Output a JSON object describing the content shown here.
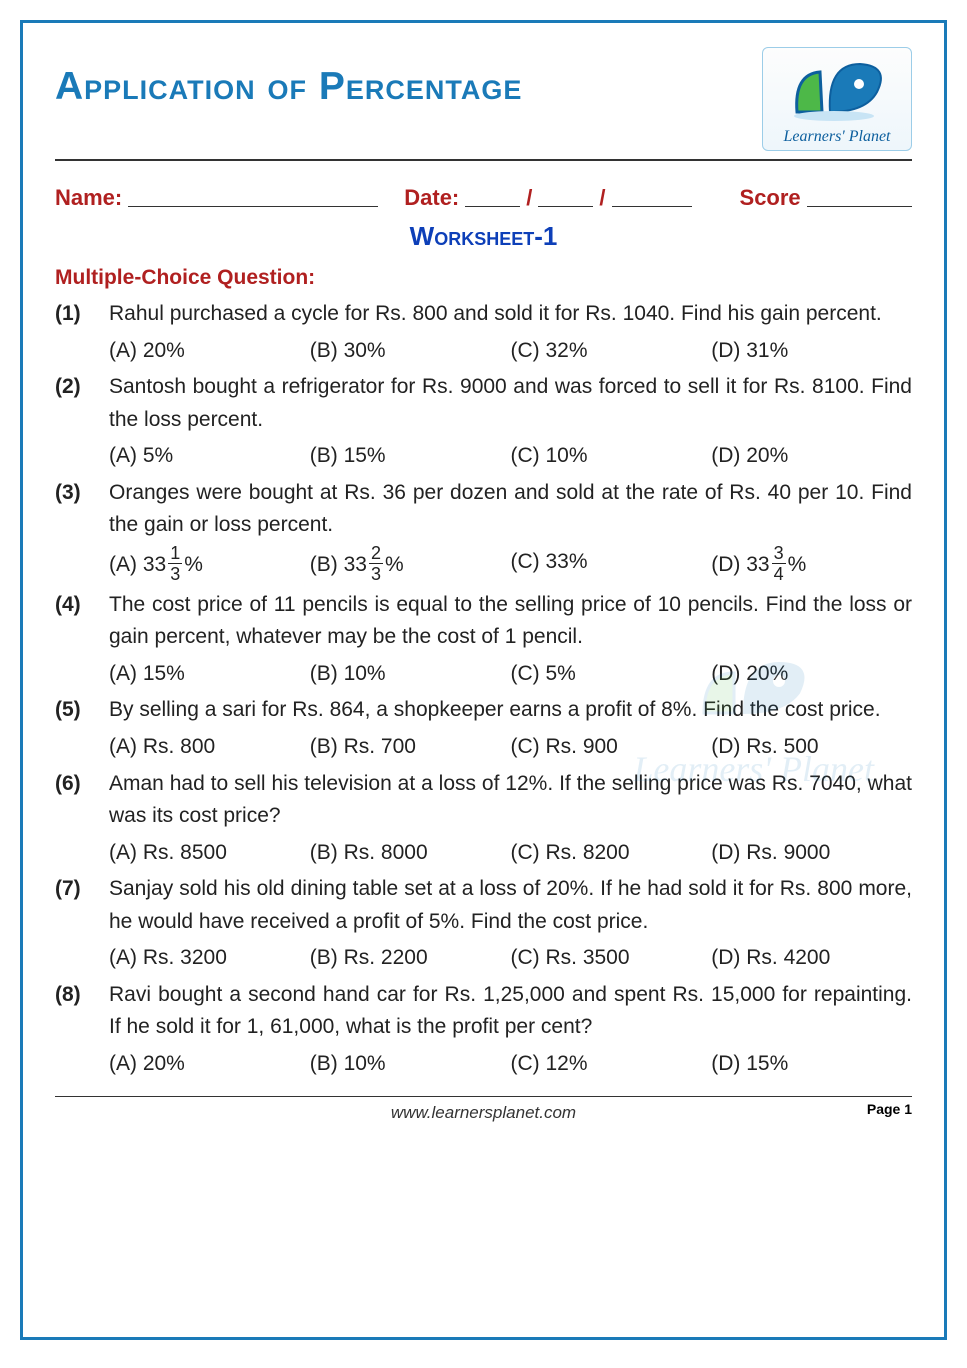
{
  "colors": {
    "border": "#1a7ab8",
    "title": "#1a7ab8",
    "red": "#b02020",
    "worksheet": "#0d3fb8",
    "text": "#222222"
  },
  "header": {
    "title": "Application of Percentage",
    "logo_text": "Learners' Planet"
  },
  "info": {
    "name_label": "Name:",
    "date_label": "Date:",
    "date_sep": "/",
    "score_label": "Score"
  },
  "worksheet_title": "Worksheet-1",
  "section_heading": "Multiple-Choice Question:",
  "questions": [
    {
      "num": "(1)",
      "text": "Rahul purchased a cycle for Rs. 800 and sold it for Rs. 1040. Find his gain percent.",
      "opts": [
        "(A) 20%",
        "(B) 30%",
        "(C) 32%",
        "(D) 31%"
      ]
    },
    {
      "num": "(2)",
      "text": "Santosh bought a refrigerator for Rs. 9000 and was forced to sell it for Rs. 8100. Find the loss percent.",
      "opts": [
        "(A) 5%",
        "(B) 15%",
        "(C) 10%",
        "(D) 20%"
      ]
    },
    {
      "num": "(3)",
      "text": "Oranges were bought at Rs. 36 per dozen and sold at the rate of Rs. 40 per 10. Find the gain or loss percent.",
      "opts_frac": [
        {
          "prefix": "(A) 33",
          "num": "1",
          "den": "3",
          "suffix": "%"
        },
        {
          "prefix": "(B) 33",
          "num": "2",
          "den": "3",
          "suffix": "%"
        },
        {
          "plain": "(C) 33%"
        },
        {
          "prefix": "(D) 33",
          "num": "3",
          "den": "4",
          "suffix": "%"
        }
      ]
    },
    {
      "num": "(4)",
      "text": "The cost price of 11 pencils is equal to the selling price of 10 pencils. Find the loss or gain percent, whatever may be the cost of 1 pencil.",
      "opts": [
        "(A) 15%",
        "(B) 10%",
        "(C) 5%",
        "(D) 20%"
      ]
    },
    {
      "num": "(5)",
      "text": "By selling a sari for Rs. 864, a shopkeeper earns a profit of 8%. Find the cost price.",
      "opts": [
        "(A) Rs. 800",
        "(B) Rs. 700",
        "(C) Rs. 900",
        "(D) Rs. 500"
      ]
    },
    {
      "num": "(6)",
      "text": "Aman had to sell his television at a loss of 12%. If the selling price was Rs. 7040, what was its cost price?",
      "opts": [
        "(A) Rs. 8500",
        "(B) Rs. 8000",
        "(C) Rs. 8200",
        "(D) Rs. 9000"
      ]
    },
    {
      "num": "(7)",
      "text": "Sanjay sold his old dining table set at a loss of 20%. If he had sold it for Rs. 800 more, he would have received a profit of 5%. Find the cost price.",
      "opts": [
        "(A) Rs. 3200",
        "(B) Rs. 2200",
        "(C) Rs. 3500",
        "(D) Rs. 4200"
      ]
    },
    {
      "num": "(8)",
      "text": "Ravi bought a second hand car for Rs. 1,25,000 and spent Rs. 15,000 for repainting. If he sold it for 1, 61,000, what is the profit per cent?",
      "opts": [
        "(A) 20%",
        "(B) 10%",
        "(C) 12%",
        "(D) 15%"
      ]
    }
  ],
  "footer": {
    "page": "Page 1",
    "url": "www.learnersplanet.com"
  },
  "watermark": "Learners' Planet"
}
